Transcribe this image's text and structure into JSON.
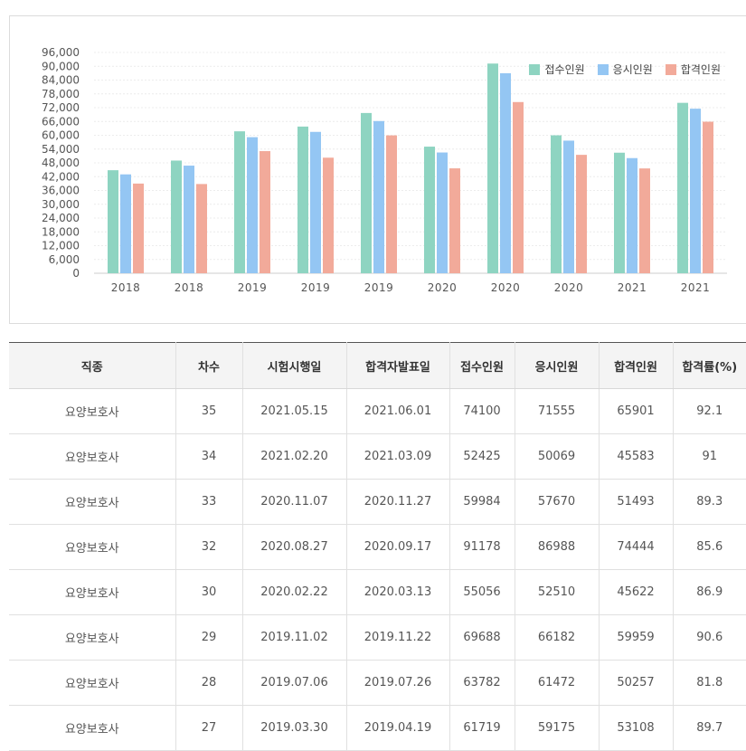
{
  "chart_data": {
    "type": "bar",
    "categories": [
      "2018",
      "2018",
      "2019",
      "2019",
      "2019",
      "2020",
      "2020",
      "2020",
      "2021",
      "2021"
    ],
    "series": [
      {
        "name": "접수인원",
        "color": "#8ed4c1",
        "values": [
          44800,
          49000,
          61719,
          63782,
          69688,
          55056,
          91178,
          59984,
          52425,
          74100
        ]
      },
      {
        "name": "응시인원",
        "color": "#94c6f3",
        "values": [
          43000,
          46800,
          59175,
          61472,
          66182,
          52510,
          86988,
          57670,
          50069,
          71555
        ]
      },
      {
        "name": "합격인원",
        "color": "#f2aa9a",
        "values": [
          39000,
          38800,
          53108,
          50257,
          59959,
          45622,
          74444,
          51493,
          45583,
          65901
        ]
      }
    ],
    "yticks": [
      "96,000",
      "90,000",
      "84,000",
      "78,000",
      "72,000",
      "66,000",
      "60,000",
      "54,000",
      "48,000",
      "42,000",
      "36,000",
      "30,000",
      "24,000",
      "18,000",
      "12,000",
      "6,000",
      "0"
    ],
    "ylim": [
      0,
      96000
    ],
    "legend_position": "top-right",
    "grid": true
  },
  "table": {
    "headers": [
      "직종",
      "차수",
      "시험시행일",
      "합격자발표일",
      "접수인원",
      "응시인원",
      "합격인원",
      "합격률(%)"
    ],
    "rows": [
      [
        "요양보호사",
        "35",
        "2021.05.15",
        "2021.06.01",
        "74100",
        "71555",
        "65901",
        "92.1"
      ],
      [
        "요양보호사",
        "34",
        "2021.02.20",
        "2021.03.09",
        "52425",
        "50069",
        "45583",
        "91"
      ],
      [
        "요양보호사",
        "33",
        "2020.11.07",
        "2020.11.27",
        "59984",
        "57670",
        "51493",
        "89.3"
      ],
      [
        "요양보호사",
        "32",
        "2020.08.27",
        "2020.09.17",
        "91178",
        "86988",
        "74444",
        "85.6"
      ],
      [
        "요양보호사",
        "30",
        "2020.02.22",
        "2020.03.13",
        "55056",
        "52510",
        "45622",
        "86.9"
      ],
      [
        "요양보호사",
        "29",
        "2019.11.02",
        "2019.11.22",
        "69688",
        "66182",
        "59959",
        "90.6"
      ],
      [
        "요양보호사",
        "28",
        "2019.07.06",
        "2019.07.26",
        "63782",
        "61472",
        "50257",
        "81.8"
      ],
      [
        "요양보호사",
        "27",
        "2019.03.30",
        "2019.04.19",
        "61719",
        "59175",
        "53108",
        "89.7"
      ]
    ]
  }
}
